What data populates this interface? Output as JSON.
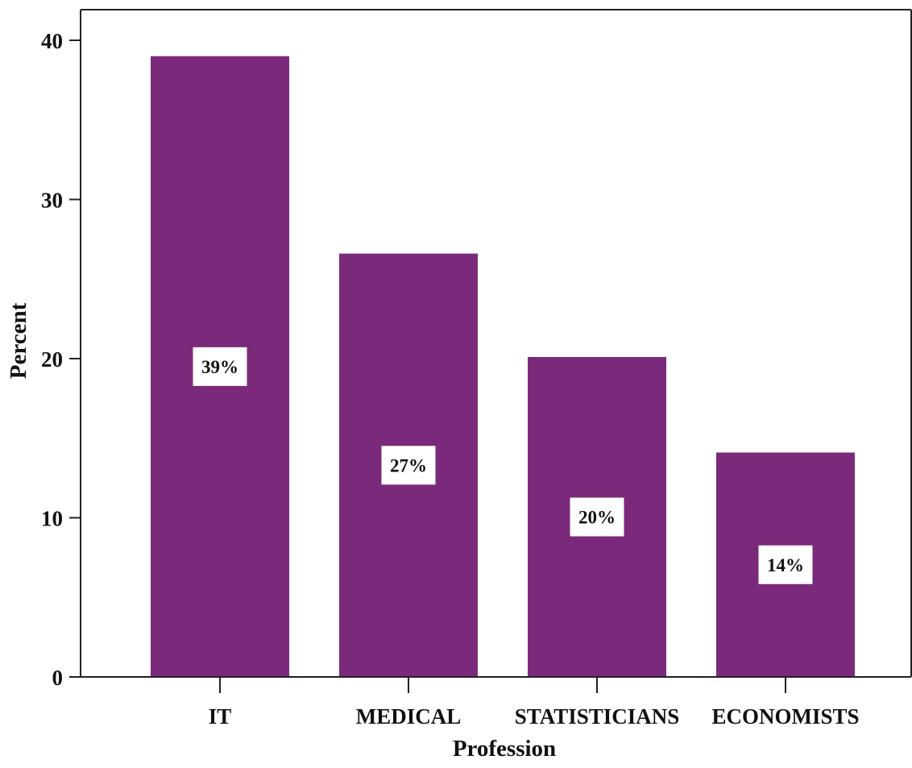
{
  "chart_data": {
    "type": "bar",
    "title": "",
    "xlabel": "Profession",
    "ylabel": "Percent",
    "categories": [
      "IT",
      "MEDICAL",
      "STATISTICIANS",
      "ECONOMISTS"
    ],
    "values": [
      39,
      26.6,
      20.1,
      14.1
    ],
    "data_labels": [
      "39%",
      "27%",
      "20%",
      "14%"
    ],
    "ylim": [
      0,
      40
    ],
    "yticks": [
      0,
      10,
      20,
      30,
      40
    ],
    "grid": false,
    "legend": "none",
    "bar_color": "#7b2a7b"
  }
}
